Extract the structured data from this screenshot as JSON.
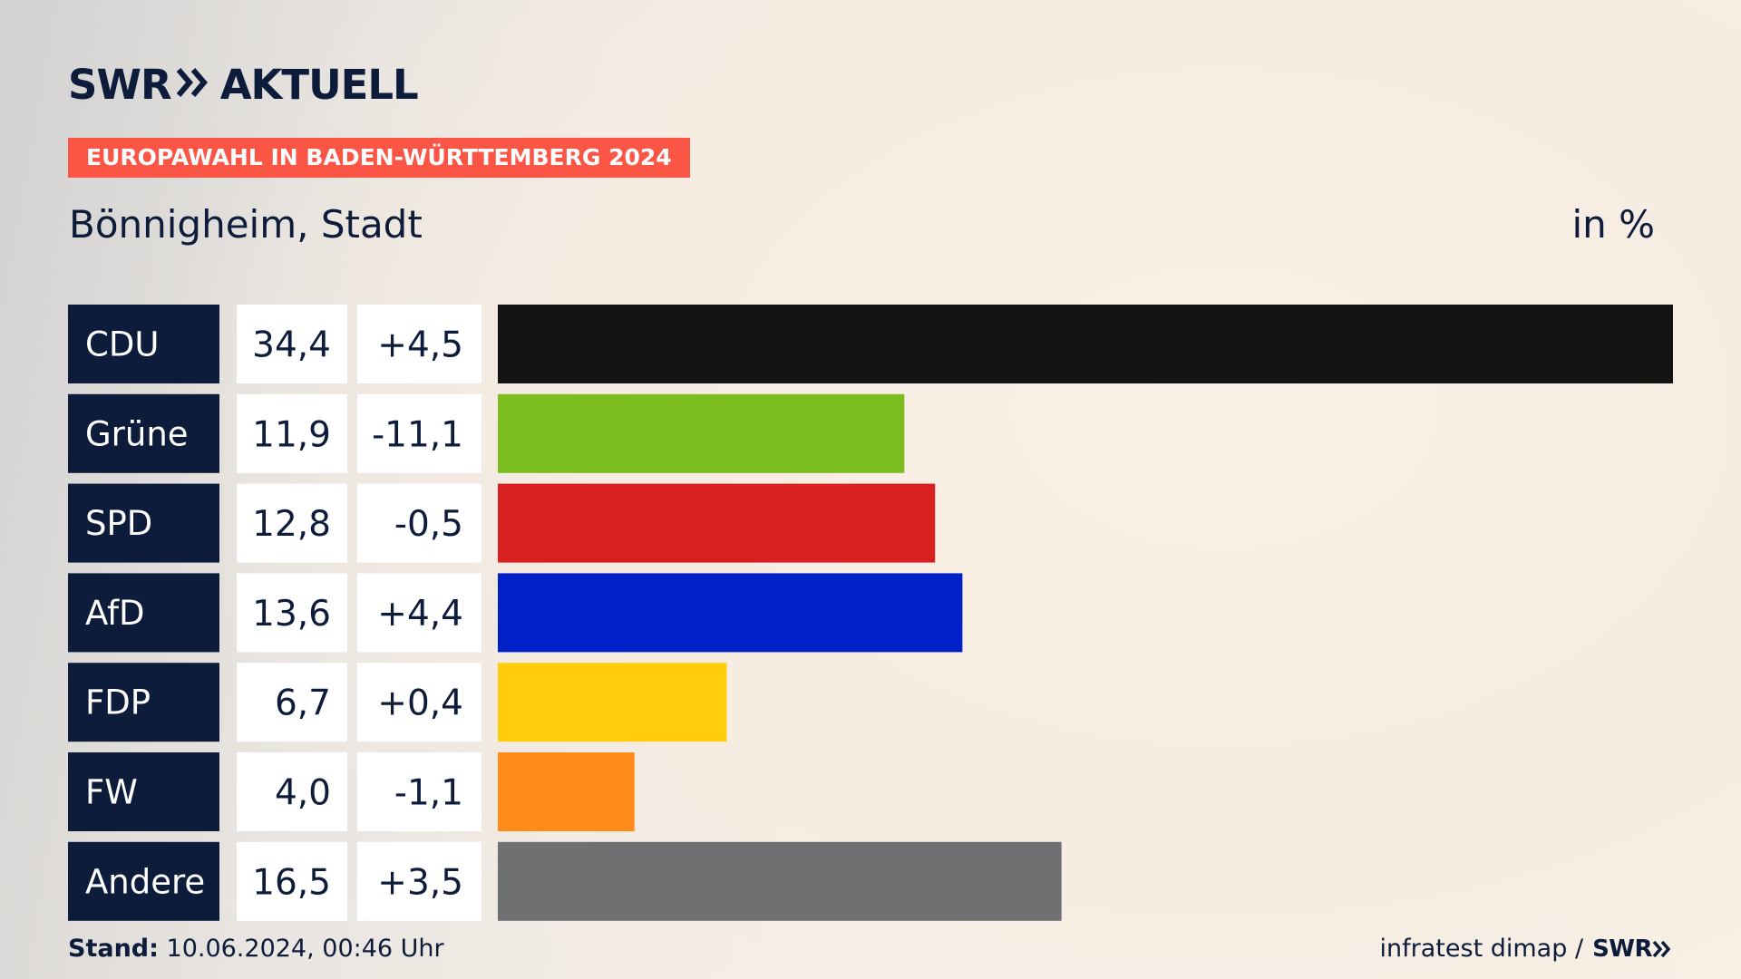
{
  "header": {
    "logo_word_left": "SWR",
    "logo_word_right": "AKTUELL",
    "badge": "EUROPAWAHL IN BADEN-WÜRTTEMBERG 2024",
    "subtitle": "Bönnigheim, Stadt",
    "unit": "in %"
  },
  "footer": {
    "stand_label": "Stand:",
    "stand_value": "10.06.2024, 00:46 Uhr",
    "source": "infratest dimap /",
    "source_logo": "SWR"
  },
  "colors": {
    "label_bg": "#0c1c3a",
    "value_bg": "#ffffff",
    "badge": "#fb5546"
  },
  "chart_data": {
    "type": "bar",
    "orientation": "horizontal",
    "categories": [
      "CDU",
      "Grüne",
      "SPD",
      "AfD",
      "FDP",
      "FW",
      "Andere"
    ],
    "values": [
      34.4,
      11.9,
      12.8,
      13.6,
      6.7,
      4.0,
      16.5
    ],
    "value_labels": [
      "34,4",
      "11,9",
      "12,8",
      "13,6",
      "6,7",
      "4,0",
      "16,5"
    ],
    "change_labels": [
      "+4,5",
      "-11,1",
      "-0,5",
      "+4,4",
      "+0,4",
      "-1,1",
      "+3,5"
    ],
    "bar_colors": [
      "#141414",
      "#7bbd1f",
      "#d7201f",
      "#0021c8",
      "#ffcd0a",
      "#ff8c19",
      "#6f7072"
    ],
    "xlim": [
      0,
      34.4
    ]
  }
}
